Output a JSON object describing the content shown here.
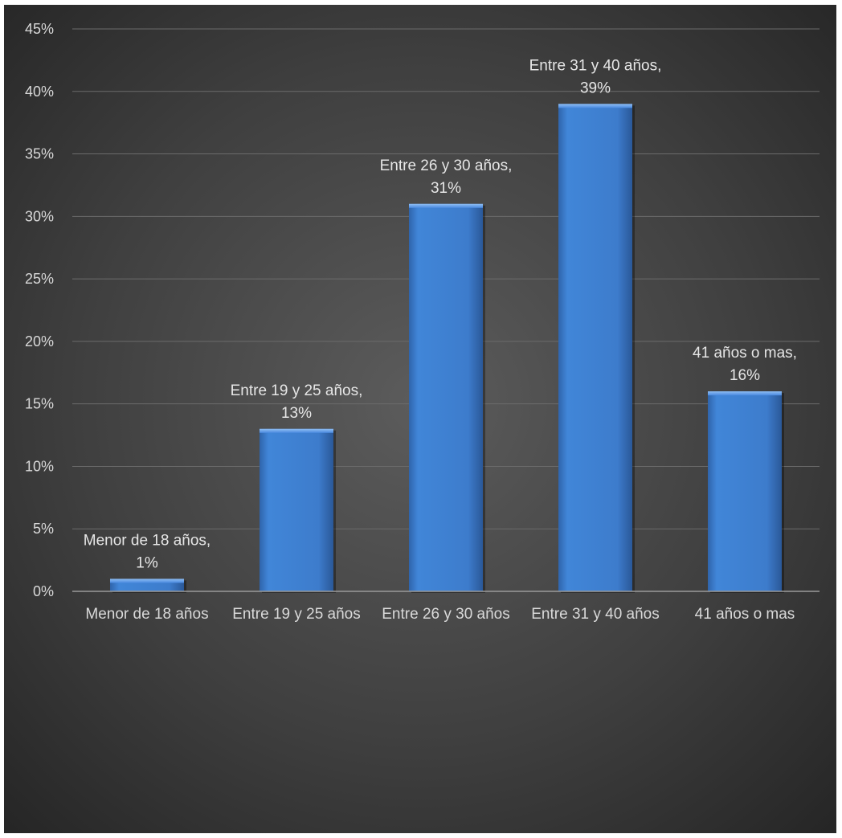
{
  "chart_data": {
    "type": "bar",
    "title": "",
    "xlabel": "",
    "ylabel": "",
    "categories": [
      "Menor de 18 años",
      "Entre 19 y 25 años",
      "Entre 26 y 30 años",
      "Entre 31 y 40 años",
      "41 años o mas"
    ],
    "values": [
      1,
      13,
      31,
      39,
      16
    ],
    "data_labels": [
      [
        "Menor de 18 años,",
        "1%"
      ],
      [
        "Entre 19 y 25 años,",
        "13%"
      ],
      [
        "Entre 26 y 30 años,",
        "31%"
      ],
      [
        "Entre 31 y 40 años,",
        "39%"
      ],
      [
        "41 años o mas,",
        "16%"
      ]
    ],
    "ylim": [
      0,
      45
    ],
    "yticks": [
      "0%",
      "5%",
      "10%",
      "15%",
      "20%",
      "25%",
      "30%",
      "35%",
      "40%",
      "45%"
    ],
    "ytick_values": [
      0,
      5,
      10,
      15,
      20,
      25,
      30,
      35,
      40,
      45
    ],
    "grid": true,
    "legend": "none",
    "colors": {
      "bar": "#3f7fd1",
      "bar_light": "#4a8ae0",
      "bar_dark": "#2f66b0",
      "background_center": "#5a5a5a",
      "background_edge": "#262626",
      "grid": "#6b6b6b",
      "axis": "#9a9a9a",
      "text": "#d9d9d9"
    }
  }
}
